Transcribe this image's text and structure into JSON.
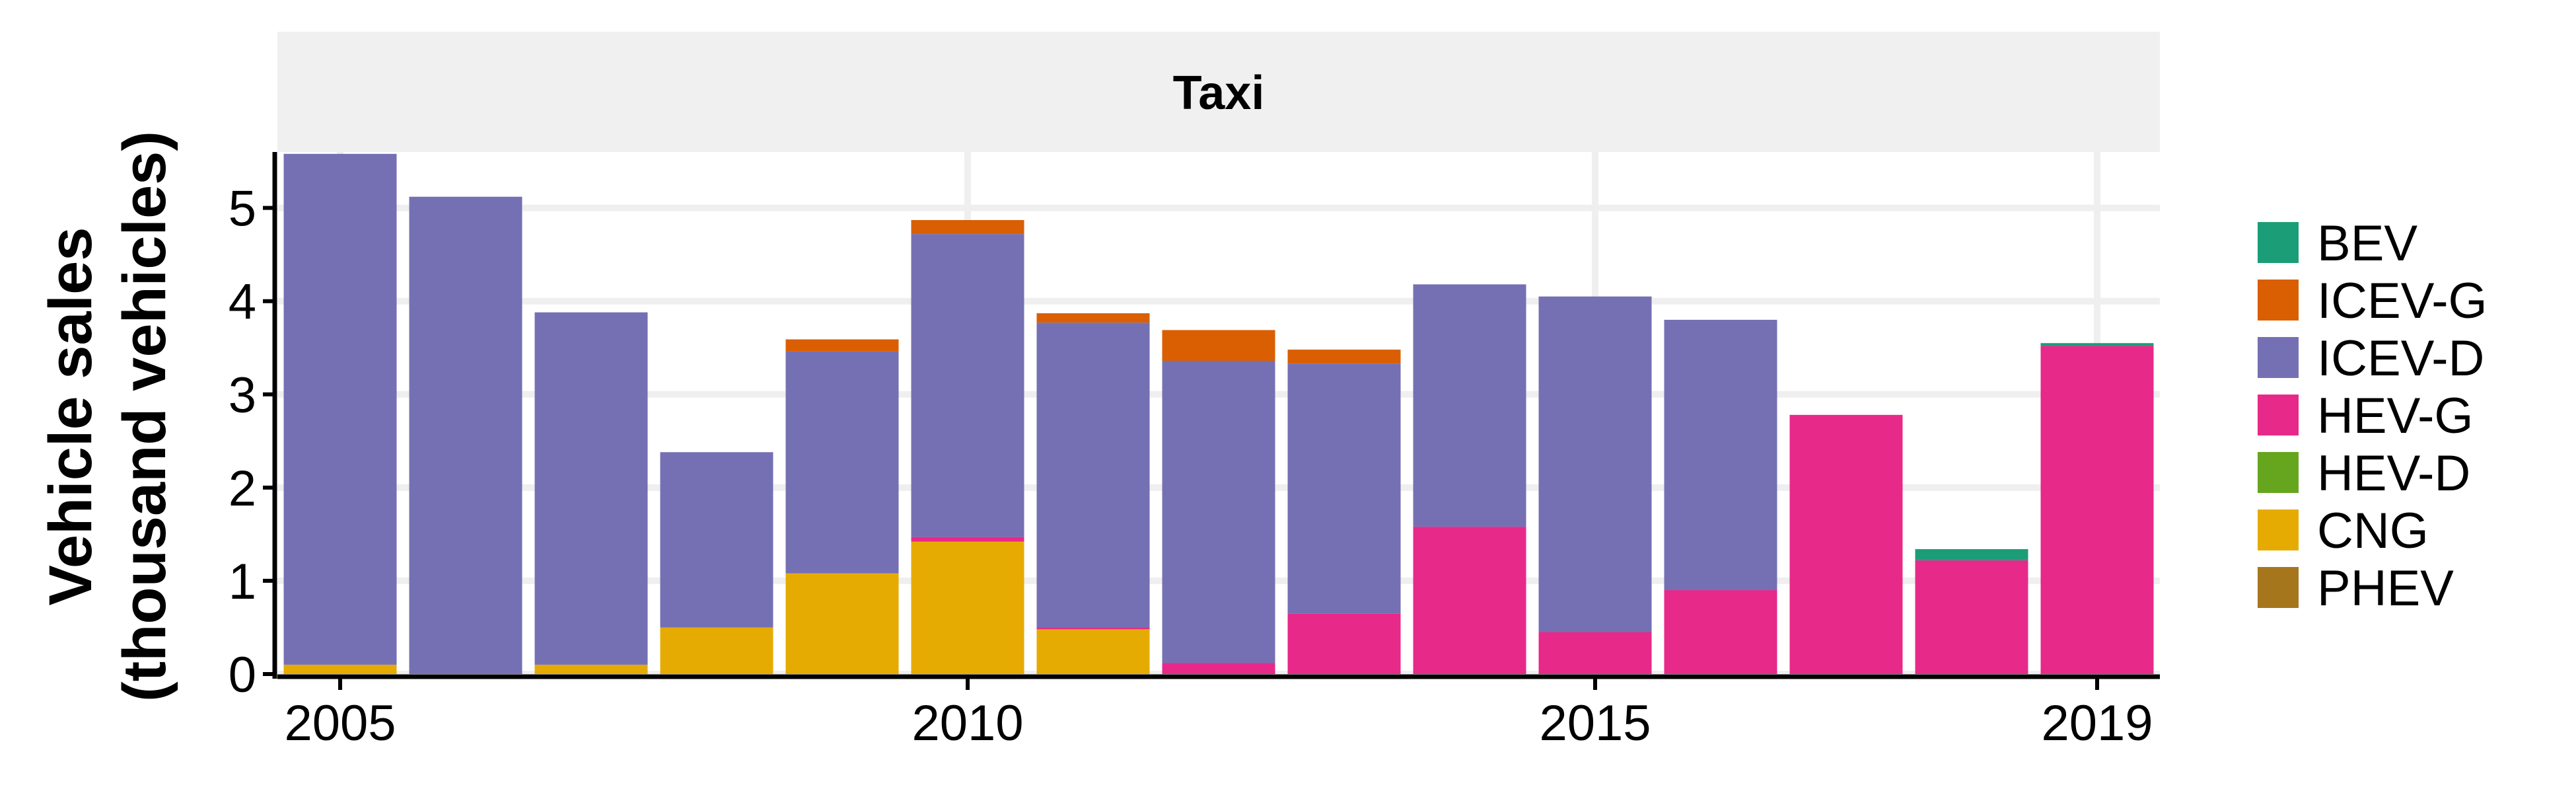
{
  "chart_data": {
    "type": "bar",
    "stacked": true,
    "panel_title": "Taxi",
    "ylabel_line1": "Vehicle sales",
    "ylabel_line2": "(thousand vehicles)",
    "xlabel": "",
    "x": [
      2005,
      2006,
      2007,
      2008,
      2009,
      2010,
      2011,
      2012,
      2013,
      2014,
      2015,
      2016,
      2017,
      2018,
      2019
    ],
    "x_ticks": [
      2005,
      2010,
      2015,
      2019
    ],
    "ylim": [
      0,
      5.6
    ],
    "y_ticks": [
      0,
      1,
      2,
      3,
      4,
      5
    ],
    "grid": true,
    "legend_position": "right",
    "series": [
      {
        "name": "PHEV",
        "color": "#a6761d",
        "values": [
          0,
          0,
          0,
          0,
          0,
          0,
          0,
          0,
          0,
          0,
          0,
          0,
          0,
          0,
          0
        ]
      },
      {
        "name": "CNG",
        "color": "#e6ab02",
        "values": [
          0.1,
          0,
          0.1,
          0.5,
          1.08,
          1.42,
          0.48,
          0,
          0,
          0,
          0,
          0,
          0,
          0,
          0
        ]
      },
      {
        "name": "HEV-D",
        "color": "#66a61e",
        "values": [
          0,
          0,
          0,
          0,
          0,
          0,
          0,
          0,
          0,
          0,
          0,
          0,
          0,
          0,
          0
        ]
      },
      {
        "name": "HEV-G",
        "color": "#e7298a",
        "values": [
          0,
          0,
          0,
          0,
          0,
          0.05,
          0.02,
          0.12,
          0.65,
          1.58,
          0.45,
          0.9,
          2.78,
          1.22,
          3.52
        ]
      },
      {
        "name": "ICEV-D",
        "color": "#7570b3",
        "values": [
          5.48,
          5.12,
          3.78,
          1.88,
          2.38,
          3.25,
          3.27,
          3.24,
          2.68,
          2.6,
          3.6,
          2.9,
          0,
          0,
          0
        ]
      },
      {
        "name": "ICEV-G",
        "color": "#d95f02",
        "values": [
          0,
          0,
          0,
          0,
          0.13,
          0.15,
          0.1,
          0.33,
          0.15,
          0,
          0,
          0,
          0,
          0,
          0
        ]
      },
      {
        "name": "BEV",
        "color": "#1b9e77",
        "values": [
          0,
          0,
          0,
          0,
          0,
          0,
          0,
          0,
          0,
          0,
          0,
          0,
          0,
          0.12,
          0.03
        ]
      }
    ],
    "legend_order": [
      "BEV",
      "ICEV-G",
      "ICEV-D",
      "HEV-G",
      "HEV-D",
      "CNG",
      "PHEV"
    ]
  }
}
